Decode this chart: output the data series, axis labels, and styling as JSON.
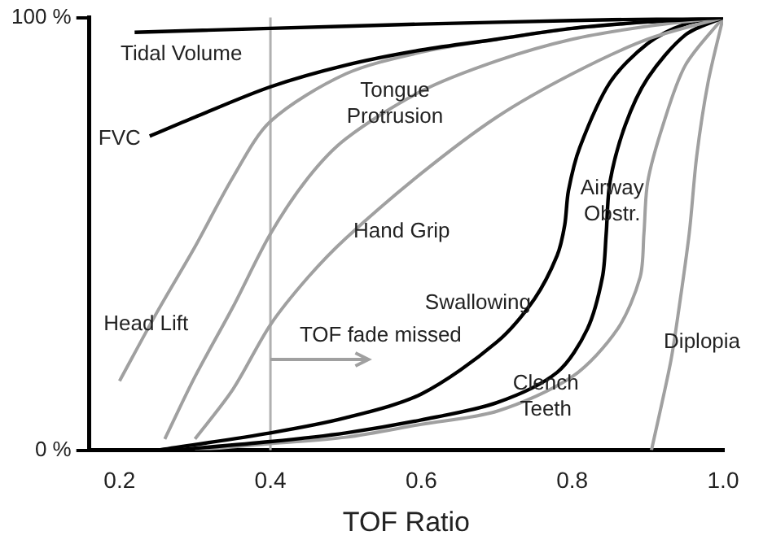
{
  "chart_data": {
    "type": "line",
    "xlabel": "TOF Ratio",
    "xlim": [
      0.16,
      1.0
    ],
    "xticks": [
      0.2,
      0.4,
      0.6,
      0.8,
      {
        "value": 1.0,
        "label": "1.0"
      }
    ],
    "ylim": [
      0,
      100
    ],
    "yticks": [
      {
        "value": 0,
        "label": "0 %"
      },
      {
        "value": 100,
        "label": "100 %"
      }
    ],
    "grid": false,
    "legend": false,
    "marker": "none",
    "series": [
      {
        "name": "Tidal Volume",
        "color": "#000000",
        "x": [
          0.22,
          0.4,
          0.6,
          0.8,
          1.0
        ],
        "values": [
          96.6,
          97.5,
          98.5,
          99.3,
          100
        ]
      },
      {
        "name": "FVC",
        "color": "#000000",
        "x": [
          0.24,
          0.3,
          0.4,
          0.5,
          0.6,
          0.7,
          0.8,
          0.9,
          1.0
        ],
        "values": [
          72.6,
          77,
          84,
          89,
          92.5,
          95,
          97.5,
          99,
          100
        ]
      },
      {
        "name": "Tongue Protrusion",
        "color": "#a0a0a0",
        "x": [
          0.26,
          0.3,
          0.35,
          0.4,
          0.45,
          0.5,
          0.6,
          0.7,
          0.8,
          0.9,
          1.0
        ],
        "values": [
          2.6,
          17,
          33,
          50,
          63,
          72,
          83,
          90,
          95,
          98,
          100
        ]
      },
      {
        "name": "Hand Grip",
        "color": "#a0a0a0",
        "x": [
          0.3,
          0.35,
          0.4,
          0.45,
          0.5,
          0.6,
          0.7,
          0.8,
          0.9,
          1.0
        ],
        "values": [
          2.6,
          14,
          29,
          40,
          49,
          64,
          77,
          87,
          95,
          100
        ]
      },
      {
        "name": "Head Lift",
        "color": "#a0a0a0",
        "x": [
          0.2,
          0.25,
          0.3,
          0.35,
          0.4,
          0.5,
          0.6,
          0.7,
          0.8,
          0.9,
          1.0
        ],
        "values": [
          16,
          32,
          47,
          63,
          76,
          87,
          92,
          95,
          97.5,
          99,
          100
        ]
      },
      {
        "name": "Swallowing",
        "color": "#000000",
        "x": [
          0.25,
          0.4,
          0.5,
          0.6,
          0.7,
          0.75,
          0.78,
          0.79,
          0.795,
          0.81,
          0.85,
          0.9,
          0.95,
          1.0
        ],
        "values": [
          0,
          4,
          7.5,
          13,
          25,
          35,
          45,
          52,
          60,
          70,
          85,
          94,
          98.5,
          100
        ]
      },
      {
        "name": "Airway Obstr.",
        "color": "#000000",
        "x": [
          0.27,
          0.4,
          0.5,
          0.6,
          0.7,
          0.78,
          0.82,
          0.84,
          0.845,
          0.85,
          0.87,
          0.9,
          0.95,
          1.0
        ],
        "values": [
          0,
          2,
          4,
          7,
          11,
          18,
          28,
          40,
          50,
          62,
          75,
          86,
          96,
          100
        ]
      },
      {
        "name": "Clench Teeth",
        "color": "#a0a0a0",
        "x": [
          0.3,
          0.4,
          0.5,
          0.6,
          0.7,
          0.8,
          0.86,
          0.89,
          0.895,
          0.9,
          0.92,
          0.95,
          1.0
        ],
        "values": [
          0,
          1.5,
          3,
          6,
          9,
          17,
          28,
          40,
          50,
          62,
          75,
          89,
          100
        ]
      },
      {
        "name": "Diplopia",
        "color": "#a0a0a0",
        "x": [
          0.905,
          0.93,
          0.94,
          0.955,
          0.965,
          0.98,
          1.0
        ],
        "values": [
          0,
          20,
          31,
          50,
          68,
          85,
          100
        ]
      }
    ],
    "ref_lines": [
      {
        "axis": "x",
        "value": 0.4,
        "color": "#b0b0b0"
      }
    ],
    "annotations": [
      {
        "text": "TOF fade missed",
        "x": 0.4,
        "y": 21
      }
    ]
  }
}
